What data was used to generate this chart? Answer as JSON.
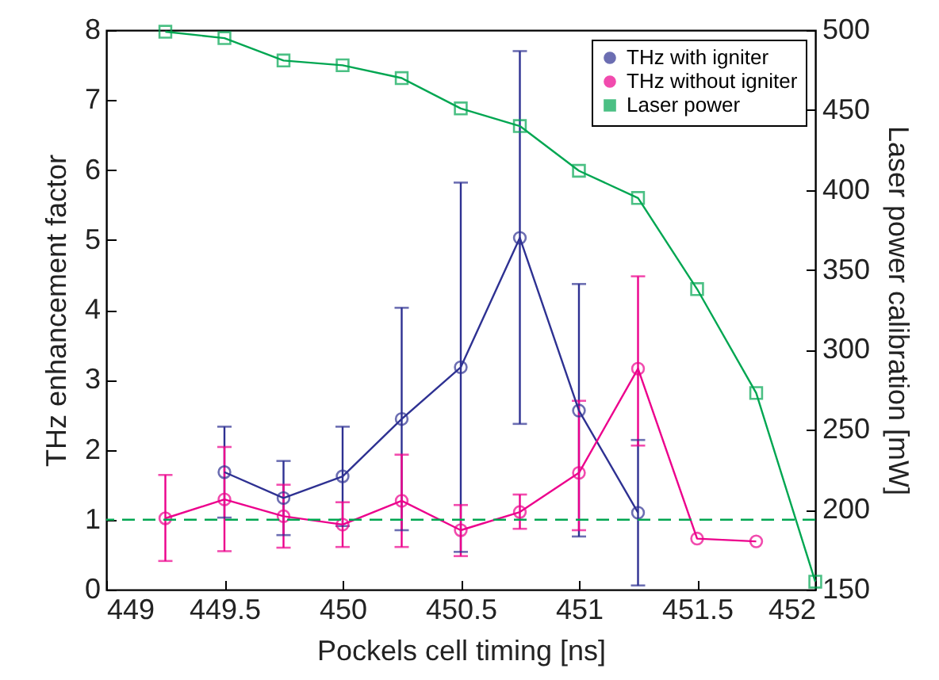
{
  "chart_data": {
    "type": "line",
    "xlabel": "Pockels cell timing [ns]",
    "ylabel": "THz enhancement factor",
    "y2label": "Laser power calibration [mW]",
    "x": [
      449.25,
      449.5,
      449.75,
      450,
      450.25,
      450.5,
      450.75,
      451,
      451.25,
      451.5,
      451.75,
      452
    ],
    "xlim": [
      449,
      452
    ],
    "xticks": [
      449,
      449.5,
      450,
      450.5,
      451,
      451.5,
      452
    ],
    "ylim": [
      0,
      8
    ],
    "yticks": [
      0,
      1,
      2,
      3,
      4,
      5,
      6,
      7,
      8
    ],
    "y2lim": [
      150,
      500
    ],
    "y2ticks": [
      150,
      200,
      250,
      300,
      350,
      400,
      450,
      500
    ],
    "grid": false,
    "legend": "top right",
    "series": [
      {
        "name": "THz with igniter",
        "color": "#2e3192",
        "marker": "circle",
        "values": [
          null,
          1.68,
          1.31,
          1.62,
          2.44,
          3.18,
          5.03,
          2.56,
          1.1,
          null,
          null,
          null
        ],
        "errors": [
          null,
          [
            1.03,
            2.33
          ],
          [
            0.78,
            1.84
          ],
          [
            0.91,
            2.33
          ],
          [
            0.85,
            4.03
          ],
          [
            0.54,
            5.82
          ],
          [
            2.37,
            7.7
          ],
          [
            0.76,
            4.37
          ],
          [
            0.06,
            2.14
          ],
          null,
          null,
          null
        ]
      },
      {
        "name": "THz without igniter",
        "color": "#ec008c",
        "marker": "circle",
        "values": [
          1.02,
          1.29,
          1.05,
          0.93,
          1.27,
          0.85,
          1.11,
          1.67,
          3.16,
          0.73,
          0.69,
          null
        ],
        "errors": [
          [
            0.41,
            1.64
          ],
          [
            0.55,
            2.04
          ],
          [
            0.6,
            1.5
          ],
          [
            0.61,
            1.25
          ],
          [
            0.61,
            1.93
          ],
          [
            0.48,
            1.21
          ],
          [
            0.87,
            1.36
          ],
          [
            0.85,
            2.7
          ],
          [
            2.06,
            4.48
          ],
          null,
          null,
          null
        ]
      },
      {
        "name": "Laser power",
        "color": "#00a651",
        "marker": "square",
        "axis": "y2",
        "values": [
          499,
          495,
          481,
          478,
          470,
          451,
          440,
          412,
          395,
          338,
          273,
          155
        ]
      }
    ],
    "ref_lines": [
      {
        "axis": "y",
        "value": 1,
        "color": "#00a651",
        "line_style": "dashed"
      }
    ]
  }
}
